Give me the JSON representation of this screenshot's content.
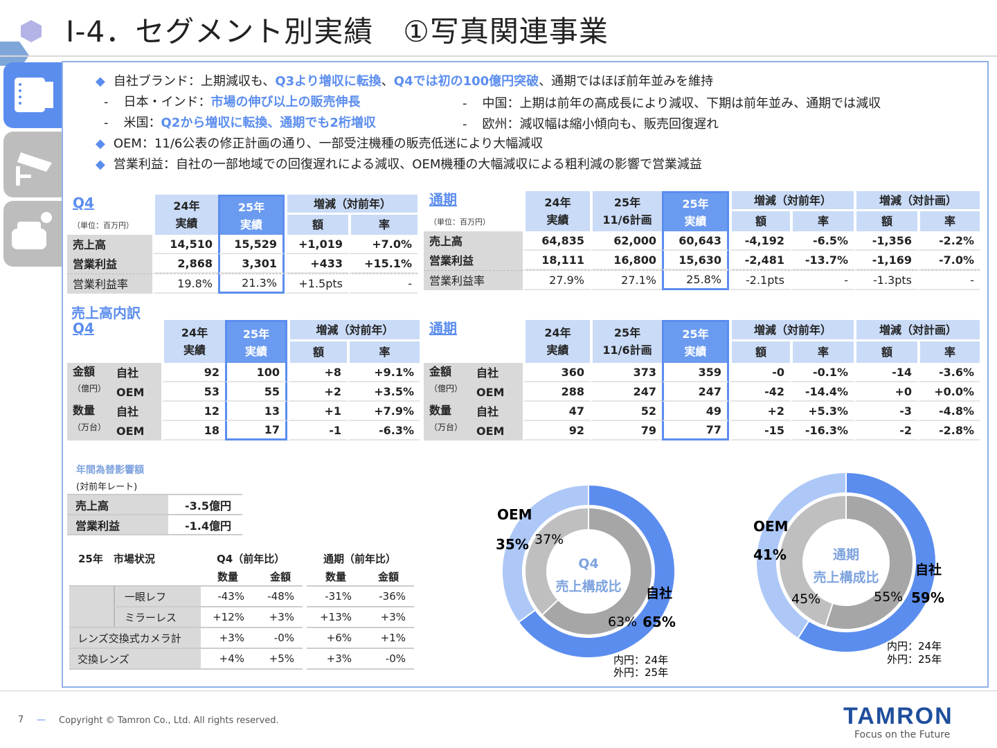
{
  "title": "Ⅰ-4．セグメント別実績　①写真関連事業",
  "colors": {
    "accent": "#5b8def",
    "header": "#c9dbf7",
    "highlight": "#6b9bf0",
    "label_bg": "#d9d9d9",
    "oem_outer": "#adc8f7",
    "oem_inner": "#bfbfbf",
    "own_inner": "#a6a6a6"
  },
  "side_tabs": [
    {
      "icon": "lens-icon",
      "active": true
    },
    {
      "icon": "security-camera-icon",
      "active": false
    },
    {
      "icon": "car-camera-icon",
      "active": false
    }
  ],
  "bullets": {
    "b1": {
      "prefix": "自社ブランド：上期減収も、",
      "hl1": "Q3より増収に転換",
      "sep": "、",
      "hl2": "Q4では初の100億円突破",
      "suffix": "、通期ではほぼ前年並みを維持"
    },
    "b2": {
      "prefix": "日本・インド：",
      "hl": "市場の伸び以上の販売伸長"
    },
    "b3": {
      "prefix": "米国：",
      "hl": "Q2から増収に転換、通期でも2桁増収"
    },
    "b4": {
      "text": "中国：上期は前年の高成長により減収、下期は前年並み、通期では減収"
    },
    "b5": {
      "text": "欧州：減収幅は縮小傾向も、販売回復遅れ"
    },
    "b6": {
      "text": "OEM：11/6公表の修正計画の通り、一部受注機種の販売低迷により大幅減収"
    },
    "b7": {
      "text": "営業利益：自社の一部地域での回復遅れによる減収、OEM機種の大幅減収による粗利減の影響で営業減益"
    },
    "bullet_mark": "◆",
    "dash": "-"
  },
  "q4_summary": {
    "title": "Q4",
    "unit": "（単位：百万円）",
    "h": [
      "24年\n実績",
      "25年\n実績",
      "増減（対前年）",
      "額",
      "率"
    ],
    "rows": [
      [
        "売上高",
        "14,510",
        "15,529",
        "+1,019",
        "+7.0%"
      ],
      [
        "営業利益",
        "2,868",
        "3,301",
        "+433",
        "+15.1%"
      ],
      [
        "営業利益率",
        "19.8%",
        "21.3%",
        "+1.5pts",
        "-"
      ]
    ]
  },
  "fy_summary": {
    "title": "通期",
    "unit": "（単位：百万円）",
    "h": [
      "24年\n実績",
      "25年\n11/6計画",
      "25年\n実績",
      "増減（対前年）",
      "増減（対計画）",
      "額",
      "率",
      "額",
      "率"
    ],
    "rows": [
      [
        "売上高",
        "64,835",
        "62,000",
        "60,643",
        "-4,192",
        "-6.5%",
        "-1,356",
        "-2.2%"
      ],
      [
        "営業利益",
        "18,111",
        "16,800",
        "15,630",
        "-2,481",
        "-13.7%",
        "-1,169",
        "-7.0%"
      ],
      [
        "営業利益率",
        "27.9%",
        "27.1%",
        "25.8%",
        "-2.1pts",
        "-",
        "-1.3pts",
        "-"
      ]
    ]
  },
  "breakdown_title": "売上高内訳",
  "q4_breakdown": {
    "title": "Q4",
    "h": [
      "24年\n実績",
      "25年\n実績",
      "増減（対前年）",
      "額",
      "率"
    ],
    "groups": [
      {
        "name": "金額",
        "unit": "（億円）"
      },
      {
        "name": "数量",
        "unit": "（万台）"
      }
    ],
    "rows": [
      [
        "自社",
        "92",
        "100",
        "+8",
        "+9.1%"
      ],
      [
        "OEM",
        "53",
        "55",
        "+2",
        "+3.5%"
      ],
      [
        "自社",
        "12",
        "13",
        "+1",
        "+7.9%"
      ],
      [
        "OEM",
        "18",
        "17",
        "-1",
        "-6.3%"
      ]
    ]
  },
  "fy_breakdown": {
    "title": "通期",
    "h": [
      "24年\n実績",
      "25年\n11/6計画",
      "25年\n実績",
      "増減（対前年）",
      "増減（対計画）",
      "額",
      "率",
      "額",
      "率"
    ],
    "groups": [
      {
        "name": "金額",
        "unit": "（億円）"
      },
      {
        "name": "数量",
        "unit": "（万台）"
      }
    ],
    "rows": [
      [
        "自社",
        "360",
        "373",
        "359",
        "-0",
        "-0.1%",
        "-14",
        "-3.6%"
      ],
      [
        "OEM",
        "288",
        "247",
        "247",
        "-42",
        "-14.4%",
        "+0",
        "+0.0%"
      ],
      [
        "自社",
        "47",
        "52",
        "49",
        "+2",
        "+5.3%",
        "-3",
        "-4.8%"
      ],
      [
        "OEM",
        "92",
        "79",
        "77",
        "-15",
        "-16.3%",
        "-2",
        "-2.8%"
      ]
    ]
  },
  "fx": {
    "title": "年間為替影響額",
    "subtitle": "(対前年レート)",
    "rows": [
      [
        "売上高",
        "-3.5億円"
      ],
      [
        "営業利益",
        "-1.4億円"
      ]
    ]
  },
  "market": {
    "title": "25年　市場状況",
    "q4": "Q4（前年比）",
    "fy": "通期（前年比）",
    "sub": [
      "数量",
      "金額",
      "数量",
      "金額"
    ],
    "rows": [
      [
        "一眼レフ",
        "-43%",
        "-48%",
        "-31%",
        "-36%"
      ],
      [
        "ミラーレス",
        "+12%",
        "+3%",
        "+13%",
        "+3%"
      ],
      [
        "レンズ交換式カメラ計",
        "+3%",
        "-0%",
        "+6%",
        "+1%"
      ],
      [
        "交換レンズ",
        "+4%",
        "+5%",
        "+3%",
        "-0%"
      ]
    ]
  },
  "chart_data": [
    {
      "type": "pie",
      "title": "Q4\n売上構成比",
      "note_inner": "内円：24年",
      "note_outer": "外円：25年",
      "series": [
        {
          "name": "25年",
          "labels": [
            "自社",
            "OEM"
          ],
          "values": [
            65,
            35
          ]
        },
        {
          "name": "24年",
          "labels": [
            "自社",
            "OEM"
          ],
          "values": [
            63,
            37
          ]
        }
      ]
    },
    {
      "type": "pie",
      "title": "通期\n売上構成比",
      "note_inner": "内円：24年",
      "note_outer": "外円：25年",
      "series": [
        {
          "name": "25年",
          "labels": [
            "自社",
            "OEM"
          ],
          "values": [
            59,
            41
          ]
        },
        {
          "name": "24年",
          "labels": [
            "自社",
            "OEM"
          ],
          "values": [
            55,
            45
          ]
        }
      ]
    }
  ],
  "footer": {
    "page": "7",
    "dash": "—",
    "copyright": "Copyright © Tamron Co., Ltd. All rights reserved.",
    "logo": "TAMRON",
    "tagline": "Focus on the Future"
  }
}
